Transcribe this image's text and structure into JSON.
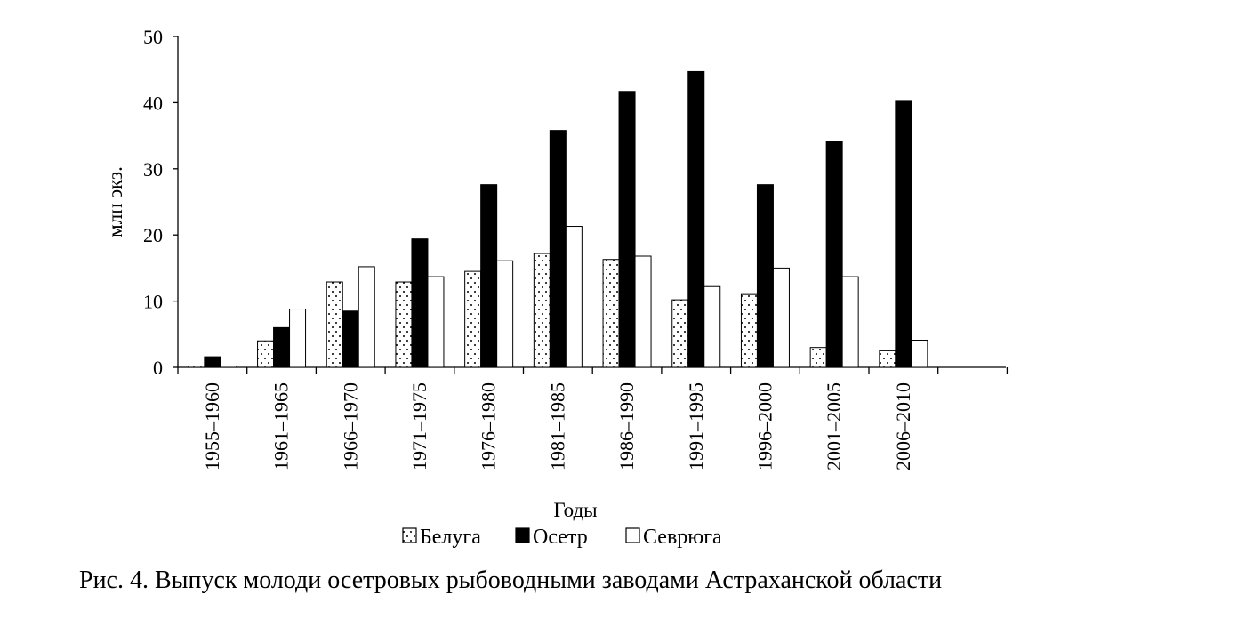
{
  "chart_data": {
    "type": "bar",
    "categories": [
      "1955–1960",
      "1961–1965",
      "1966–1970",
      "1971–1975",
      "1976–1980",
      "1981–1985",
      "1986–1990",
      "1991–1995",
      "1996–2000",
      "2001–2005",
      "2006–2010"
    ],
    "series": [
      {
        "name": "Белуга",
        "fill": "dotted",
        "values": [
          0.2,
          4.0,
          12.9,
          12.9,
          14.5,
          17.2,
          16.3,
          10.2,
          11.0,
          3.0,
          2.5
        ]
      },
      {
        "name": "Осетр",
        "fill": "black",
        "values": [
          1.6,
          6.0,
          8.5,
          19.4,
          27.6,
          35.8,
          41.7,
          44.7,
          27.6,
          34.2,
          40.2
        ]
      },
      {
        "name": "Севрюга",
        "fill": "white",
        "values": [
          0.2,
          8.8,
          15.2,
          13.7,
          16.1,
          21.3,
          16.8,
          12.2,
          15.0,
          13.7,
          4.1
        ]
      }
    ],
    "xlabel": "Годы",
    "ylabel": "млн экз.",
    "ylim": [
      0,
      50
    ],
    "yticks": [
      "0",
      "10",
      "20",
      "30",
      "40",
      "50"
    ],
    "legend": "bottom",
    "grid": false,
    "colors": {
      "bar_stroke": "#000000",
      "dark_fill": "#000000",
      "light_fill": "#ffffff"
    }
  },
  "caption": "Рис. 4. Выпуск молоди осетровых рыбоводными заводами Астраханской области"
}
